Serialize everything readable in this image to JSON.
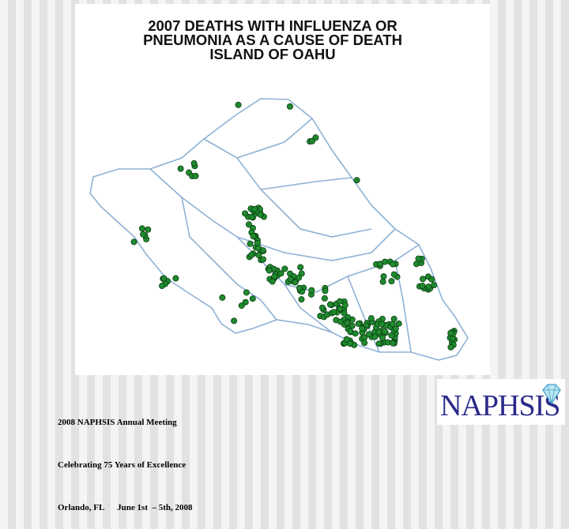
{
  "header": {
    "title_lines": [
      "2007 DEATHS WITH INFLUENZA OR",
      "PNEUMONIA AS A CAUSE OF DEATH",
      "ISLAND OF OAHU"
    ]
  },
  "footer": {
    "lines": [
      "2008 NAPHSIS Annual Meeting",
      "Celebrating 75 Years of Excellence",
      "Orlando, FL      June 1st  – 5th, 2008"
    ]
  },
  "logo": {
    "text": "NAPHSIS"
  }
}
